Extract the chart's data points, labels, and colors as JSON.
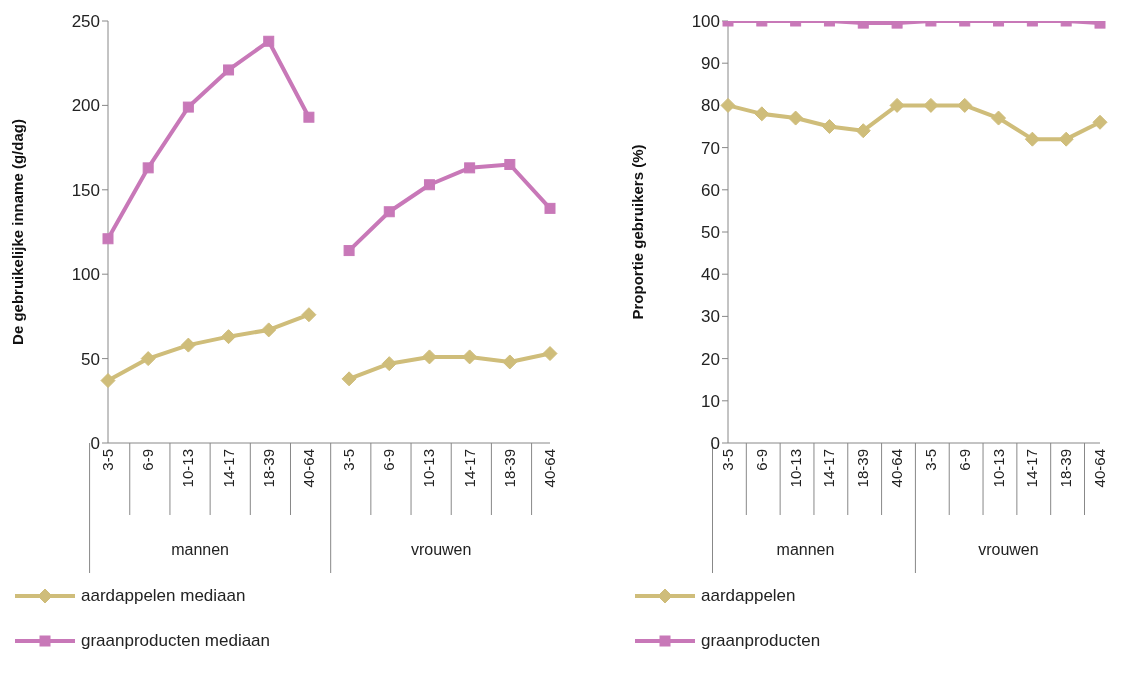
{
  "chart_data": [
    {
      "type": "line",
      "ylabel": "De gebruikelijke inname (g/dag)",
      "categories": [
        "3-5",
        "6-9",
        "10-13",
        "14-17",
        "18-39",
        "40-64",
        "3-5",
        "6-9",
        "10-13",
        "14-17",
        "18-39",
        "40-64"
      ],
      "annotations": [
        "mannen",
        "vrouwen"
      ],
      "series": [
        {
          "name": "aardappelen mediaan",
          "color": "#cfbd7a",
          "marker": "diamond",
          "values": [
            37,
            50,
            58,
            63,
            67,
            76,
            null,
            null,
            null,
            null,
            null,
            null
          ]
        },
        {
          "color": "#cfbd7a",
          "marker": "diamond",
          "values": [
            null,
            null,
            null,
            null,
            null,
            null,
            38,
            47,
            51,
            51,
            48,
            53
          ]
        },
        {
          "name": "graanproducten mediaan",
          "color": "#c878b8",
          "marker": "square",
          "values": [
            121,
            163,
            199,
            221,
            238,
            193,
            null,
            null,
            null,
            null,
            null,
            null
          ]
        },
        {
          "color": "#c878b8",
          "marker": "square",
          "values": [
            null,
            null,
            null,
            null,
            null,
            null,
            114,
            137,
            153,
            163,
            165,
            139
          ]
        }
      ],
      "ylim": [
        0,
        250
      ],
      "yticks": [
        0,
        50,
        100,
        150,
        200,
        250
      ],
      "legend": "bottom left",
      "line_style": "solid"
    },
    {
      "type": "line",
      "ylabel": "Proportie gebruikers (%)",
      "categories": [
        "3-5",
        "6-9",
        "10-13",
        "14-17",
        "18-39",
        "40-64",
        "3-5",
        "6-9",
        "10-13",
        "14-17",
        "18-39",
        "40-64"
      ],
      "annotations": [
        "mannen",
        "vrouwen"
      ],
      "series": [
        {
          "name": "aardappelen",
          "color": "#cfbd7a",
          "marker": "diamond",
          "values": [
            80,
            78,
            77,
            75,
            74,
            80,
            80,
            80,
            77,
            72,
            72,
            76
          ]
        },
        {
          "name": "graanproducten",
          "color": "#c878b8",
          "marker": "square",
          "values": [
            100,
            100,
            100,
            100,
            99.5,
            99.5,
            100,
            100,
            100,
            100,
            100,
            99.5
          ]
        }
      ],
      "ylim": [
        0,
        100
      ],
      "yticks": [
        0,
        10,
        20,
        30,
        40,
        50,
        60,
        70,
        80,
        90,
        100
      ],
      "legend": "bottom left",
      "line_style": "solid"
    }
  ]
}
